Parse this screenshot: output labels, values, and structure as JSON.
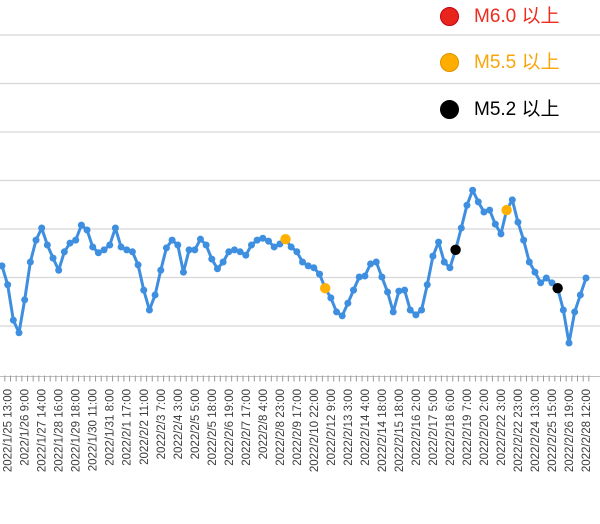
{
  "legend": {
    "items": [
      {
        "label": "M6.0 以上",
        "marker_color": "#e8251c",
        "marker_border": "#c30011",
        "text_color": "#ef2a1e"
      },
      {
        "label": "M5.5 以上",
        "marker_color": "#ffae00",
        "marker_border": "#e09200",
        "text_color": "#f9a50a"
      },
      {
        "label": "M5.2 以上",
        "marker_color": "#000000",
        "marker_border": "#000000",
        "text_color": "#000000"
      }
    ]
  },
  "chart_data": {
    "type": "line",
    "title": "",
    "xlabel": "",
    "ylabel": "",
    "y_axis": {
      "visible": false,
      "gridlines_unlabeled": true,
      "ylim_gridline_units": [
        0,
        7
      ],
      "grid": true
    },
    "series_color": "#3e8fe0",
    "x_tick_labels": [
      "2022/1/25 13:00",
      "2022/1/26 9:00",
      "2022/1/27 14:00",
      "2022/1/28 16:00",
      "2022/1/29 18:00",
      "2022/1/30 11:00",
      "2022/1/31 8:00",
      "2022/2/1 17:00",
      "2022/2/2 11:00",
      "2022/2/3 7:00",
      "2022/2/4 3:00",
      "2022/2/5 5:00",
      "2022/2/5 18:00",
      "2022/2/6 19:00",
      "2022/2/7 17:00",
      "2022/2/8 4:00",
      "2022/2/8 23:00",
      "2022/2/9 17:00",
      "2022/2/10 22:00",
      "2022/2/12 9:00",
      "2022/2/13 3:00",
      "2022/2/14 4:00",
      "2022/2/14 18:00",
      "2022/2/15 18:00",
      "2022/2/16 2:00",
      "2022/2/17 5:00",
      "2022/2/18 6:00",
      "2022/2/19 7:00",
      "2022/2/20 2:00",
      "2022/2/22 3:00",
      "2022/2/22 23:00",
      "2022/2/24 13:00",
      "2022/2/25 15:00",
      "2022/2/26 19:00",
      "2022/2/28 12:00"
    ],
    "label_start_index": 1,
    "label_step": 3,
    "values_gridline_units": [
      2.24,
      1.85,
      1.12,
      0.86,
      1.54,
      2.32,
      2.77,
      3.02,
      2.67,
      2.4,
      2.15,
      2.53,
      2.71,
      2.77,
      3.08,
      2.98,
      2.63,
      2.51,
      2.57,
      2.67,
      3.02,
      2.63,
      2.57,
      2.53,
      2.26,
      1.74,
      1.33,
      1.64,
      2.15,
      2.61,
      2.77,
      2.67,
      2.11,
      2.57,
      2.57,
      2.79,
      2.67,
      2.38,
      2.18,
      2.32,
      2.53,
      2.57,
      2.53,
      2.46,
      2.67,
      2.77,
      2.81,
      2.75,
      2.63,
      2.69,
      2.79,
      2.63,
      2.53,
      2.32,
      2.24,
      2.2,
      2.07,
      1.78,
      1.58,
      1.29,
      1.21,
      1.47,
      1.74,
      2.01,
      2.03,
      2.28,
      2.32,
      2.01,
      1.7,
      1.29,
      1.72,
      1.74,
      1.33,
      1.23,
      1.33,
      1.85,
      2.44,
      2.73,
      2.32,
      2.2,
      2.57,
      3.02,
      3.49,
      3.8,
      3.56,
      3.35,
      3.39,
      3.1,
      2.9,
      3.39,
      3.6,
      3.14,
      2.77,
      2.32,
      2.11,
      1.89,
      1.99,
      1.89,
      1.78,
      1.33,
      0.65,
      1.29,
      1.64,
      1.99
    ],
    "special_points": [
      {
        "index": 50,
        "category": "M5.5 以上",
        "color": "#ffb000"
      },
      {
        "index": 57,
        "category": "M5.5 以上",
        "color": "#ffb000"
      },
      {
        "index": 80,
        "category": "M5.2 以上",
        "color": "#000000"
      },
      {
        "index": 89,
        "category": "M5.5 以上",
        "color": "#ffb000"
      },
      {
        "index": 98,
        "category": "M5.2 以上",
        "color": "#000000"
      }
    ],
    "colors": {
      "gridline": "#d8d8d8",
      "axis": "#bfbfbf",
      "tick": "#9a9a9a",
      "tick_label": "#3d3d3d"
    }
  }
}
